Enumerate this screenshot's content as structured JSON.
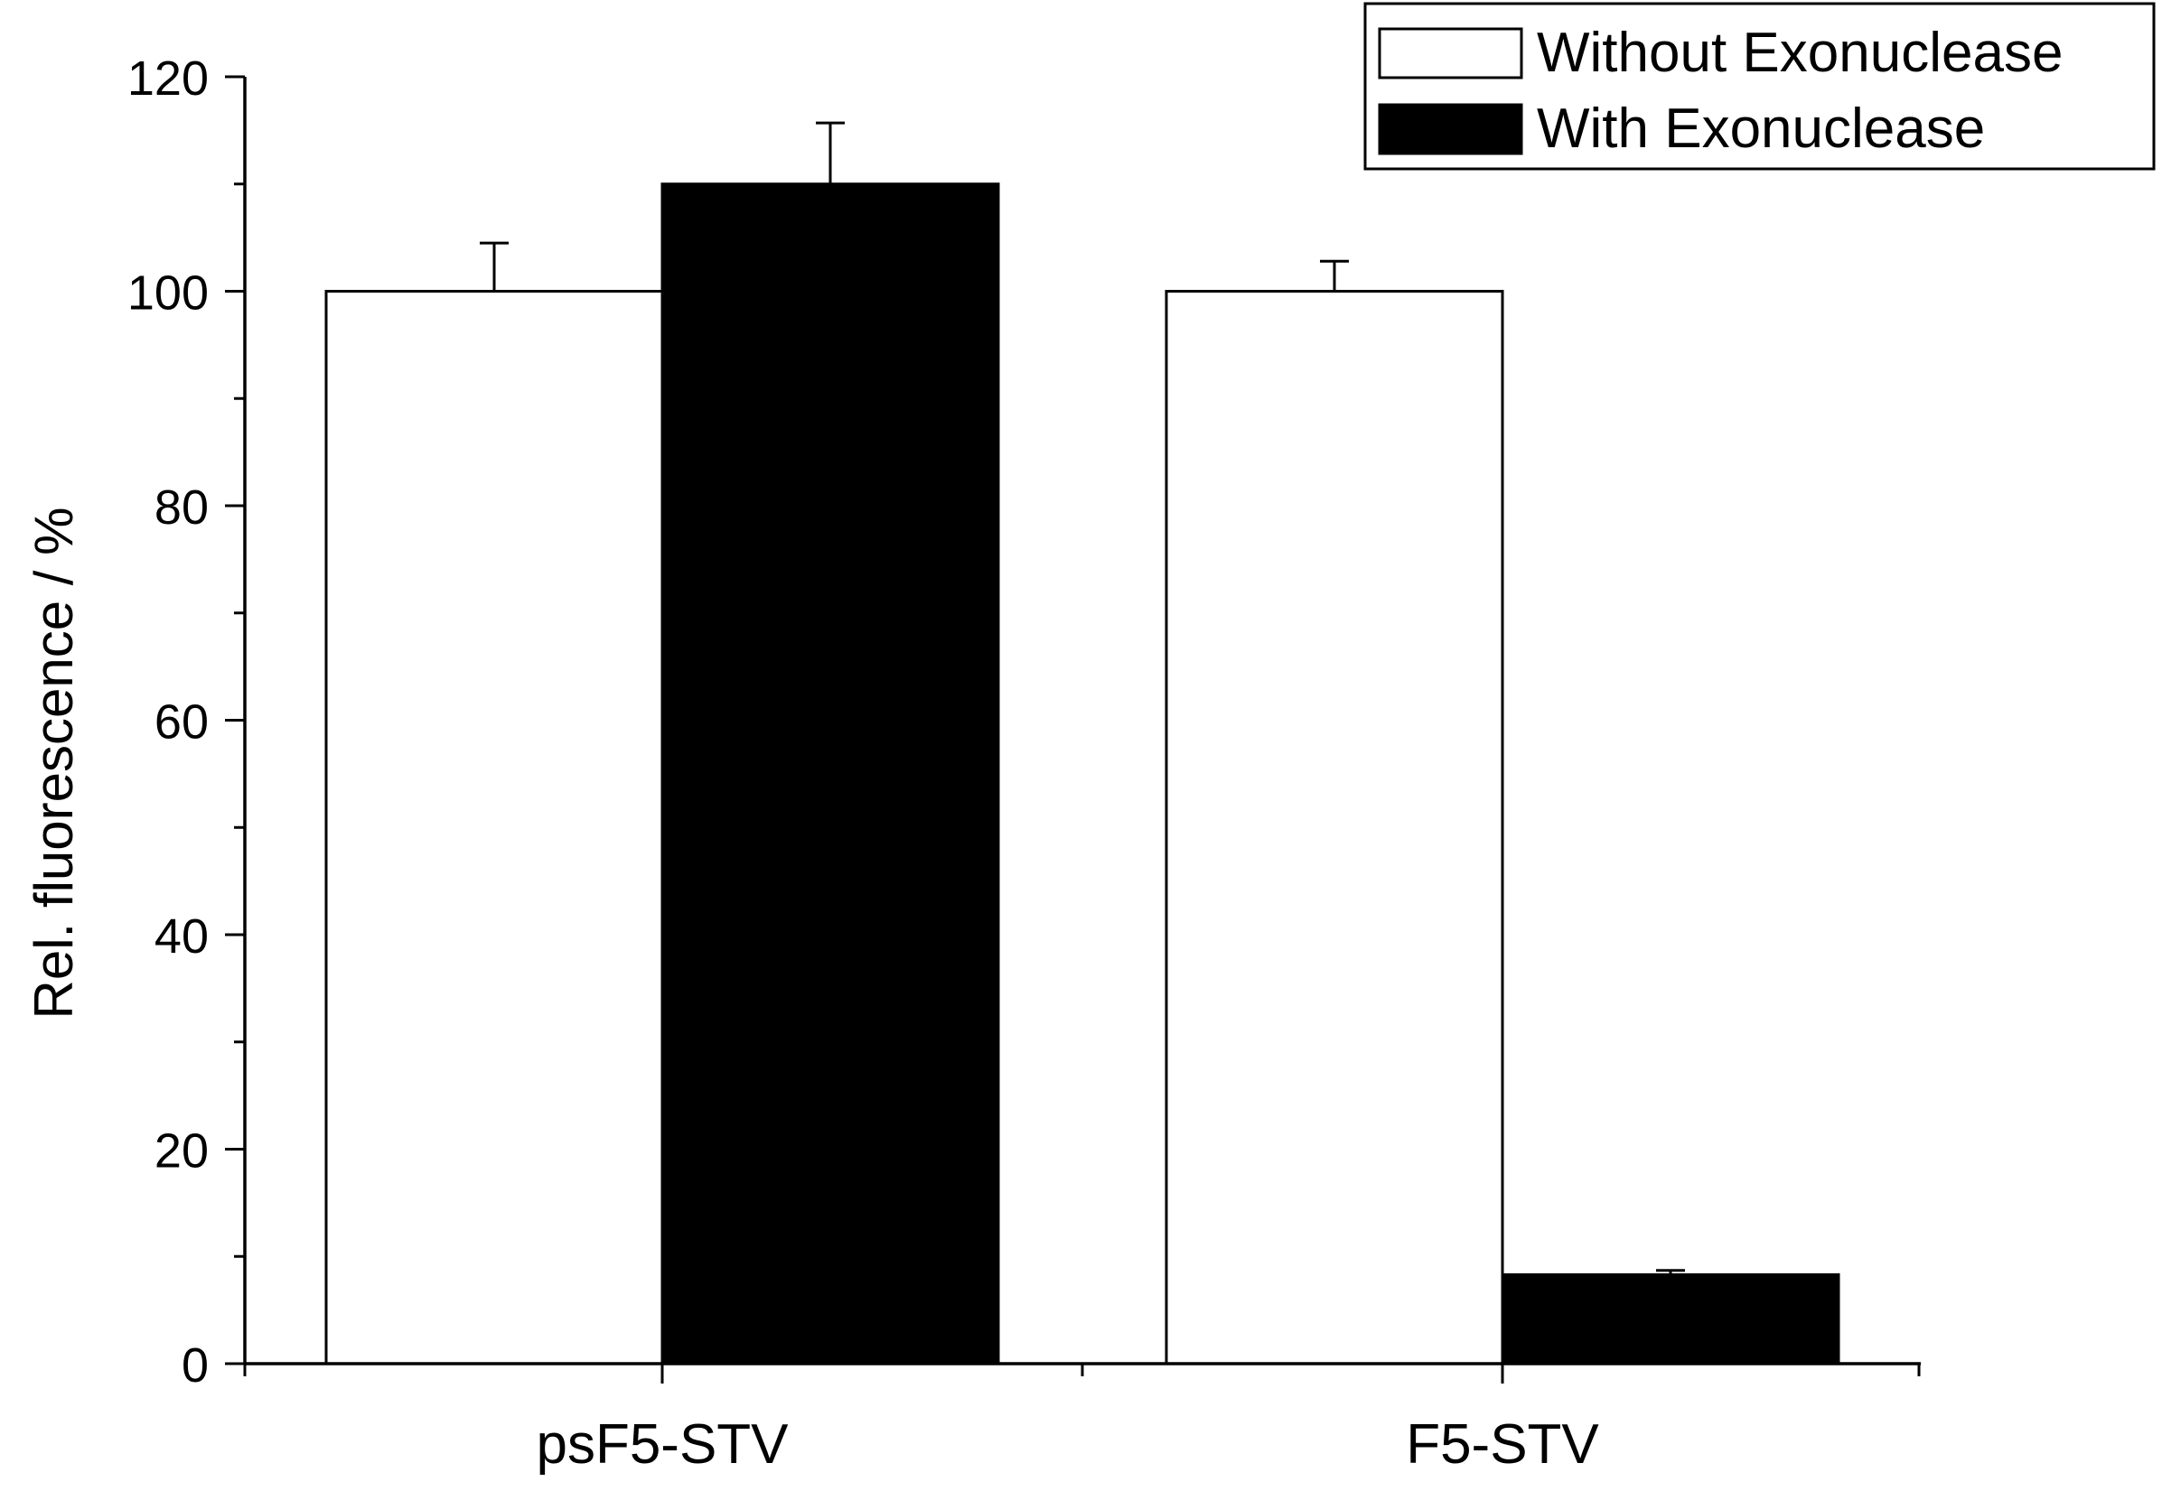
{
  "chart_data": {
    "type": "bar",
    "categories": [
      "psF5-STV",
      "F5-STV"
    ],
    "series": [
      {
        "name": "Without Exonuclease",
        "values": [
          100,
          100
        ],
        "errors": [
          4.5,
          2.8
        ],
        "color": "#ffffff"
      },
      {
        "name": "With Exonuclease",
        "values": [
          110,
          8.3
        ],
        "errors": [
          5.7,
          0.4
        ],
        "color": "#000000"
      }
    ],
    "xlabel": "",
    "ylabel": "Rel. fluorescence / %",
    "ylim": [
      0,
      120
    ],
    "yticks": [
      0,
      20,
      40,
      60,
      80,
      100,
      120
    ],
    "legend_position": "top-right",
    "grid": false
  }
}
